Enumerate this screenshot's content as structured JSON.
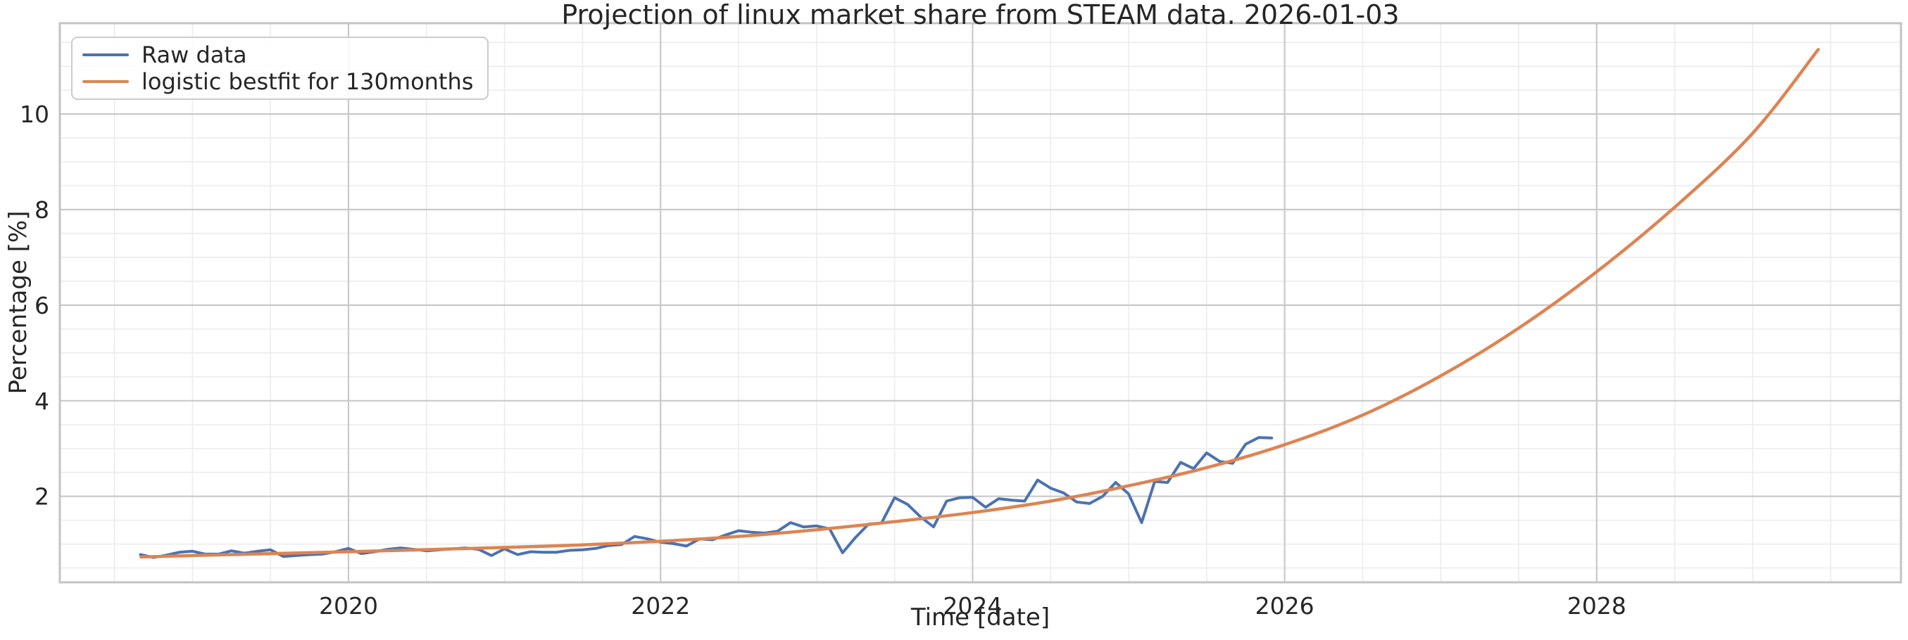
{
  "title": "Projection of linux market share from STEAM data. 2026-01-03",
  "colors": {
    "raw_line": "#4C72B0",
    "fit_line": "#DD8452",
    "grid_major": "#c9c9c9",
    "grid_minor": "#ececec",
    "spine": "#c3c3c3",
    "text": "#262626",
    "background": "#ffffff"
  },
  "chart_data": {
    "type": "line",
    "title": "Projection of linux market share from STEAM data. 2026-01-03",
    "xlabel": "Time [date]",
    "ylabel": "Percentage [%]",
    "xlim": [
      2018.15,
      2029.95
    ],
    "ylim": [
      0.2,
      11.9
    ],
    "x_major_ticks": [
      2020,
      2022,
      2024,
      2026,
      2028
    ],
    "x_major_tick_labels": [
      "2020",
      "2022",
      "2024",
      "2026",
      "2028"
    ],
    "y_major_ticks": [
      2,
      4,
      6,
      8,
      10
    ],
    "y_major_tick_labels": [
      "2",
      "4",
      "6",
      "8",
      "10"
    ],
    "minor_grid_step_x": 0.5,
    "minor_grid_step_y": 0.5,
    "grid": true,
    "legend_position": "upper left",
    "series": [
      {
        "name": "Raw data",
        "color": "#4C72B0",
        "cadence": "monthly",
        "start_date": "2018-09",
        "end_date": "2025-12",
        "values": [
          0.78,
          0.72,
          0.77,
          0.83,
          0.85,
          0.79,
          0.79,
          0.86,
          0.81,
          0.85,
          0.88,
          0.74,
          0.76,
          0.78,
          0.79,
          0.84,
          0.91,
          0.8,
          0.84,
          0.89,
          0.92,
          0.89,
          0.86,
          0.88,
          0.9,
          0.92,
          0.89,
          0.76,
          0.9,
          0.78,
          0.84,
          0.83,
          0.83,
          0.87,
          0.88,
          0.91,
          0.97,
          0.99,
          1.16,
          1.11,
          1.04,
          1.01,
          0.96,
          1.11,
          1.09,
          1.19,
          1.28,
          1.25,
          1.23,
          1.27,
          1.45,
          1.36,
          1.38,
          1.32,
          0.82,
          1.14,
          1.42,
          1.44,
          1.97,
          1.83,
          1.57,
          1.36,
          1.9,
          1.97,
          1.98,
          1.77,
          1.95,
          1.92,
          1.9,
          2.34,
          2.17,
          2.07,
          1.88,
          1.85,
          2.0,
          2.29,
          2.05,
          1.45,
          2.31,
          2.29,
          2.71,
          2.58,
          2.91,
          2.73,
          2.69,
          3.09,
          3.23,
          3.22
        ]
      },
      {
        "name": "logistic bestfit for 130months",
        "color": "#DD8452",
        "span_months": 130,
        "points": [
          [
            2018.67,
            0.73
          ],
          [
            2019.0,
            0.76
          ],
          [
            2019.5,
            0.8
          ],
          [
            2020.0,
            0.84
          ],
          [
            2020.5,
            0.885
          ],
          [
            2021.0,
            0.93
          ],
          [
            2021.5,
            0.985
          ],
          [
            2022.0,
            1.06
          ],
          [
            2022.5,
            1.16
          ],
          [
            2023.0,
            1.3
          ],
          [
            2023.5,
            1.47
          ],
          [
            2024.0,
            1.66
          ],
          [
            2024.5,
            1.9
          ],
          [
            2025.0,
            2.22
          ],
          [
            2025.5,
            2.6
          ],
          [
            2026.0,
            3.08
          ],
          [
            2026.5,
            3.7
          ],
          [
            2027.0,
            4.52
          ],
          [
            2027.5,
            5.52
          ],
          [
            2028.0,
            6.7
          ],
          [
            2028.5,
            8.05
          ],
          [
            2029.0,
            9.6
          ],
          [
            2029.42,
            11.35
          ]
        ]
      }
    ]
  }
}
